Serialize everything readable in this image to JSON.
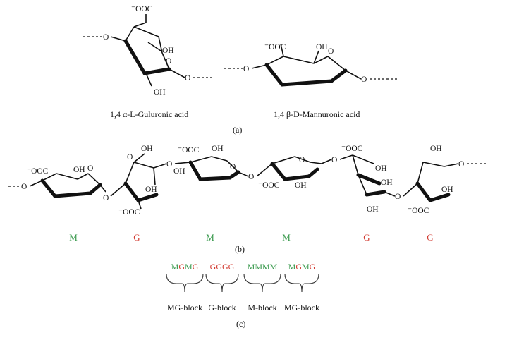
{
  "colors": {
    "M": "#3a9a4e",
    "G": "#d23a30",
    "ink": "#111111"
  },
  "panel_a": {
    "caption": "(a)",
    "guluronic_label": "1,4 α-L-Guluronic acid",
    "mannuronic_label": "1,4 β-D-Mannuronic acid"
  },
  "panel_b": {
    "caption": "(b)",
    "units": [
      "M",
      "G",
      "M",
      "M",
      "G",
      "G"
    ]
  },
  "panel_c": {
    "caption": "(c)",
    "blocks": [
      {
        "letters": [
          [
            "M",
            "M"
          ],
          [
            "G",
            "G"
          ],
          [
            "M",
            "M"
          ],
          [
            "G",
            "G"
          ]
        ],
        "label": "MG-block"
      },
      {
        "letters": [
          [
            "G",
            "G"
          ],
          [
            "G",
            "G"
          ],
          [
            "G",
            "G"
          ],
          [
            "G",
            "G"
          ]
        ],
        "label": "G-block"
      },
      {
        "letters": [
          [
            "M",
            "M"
          ],
          [
            "M",
            "M"
          ],
          [
            "M",
            "M"
          ],
          [
            "M",
            "M"
          ]
        ],
        "label": "M-block"
      },
      {
        "letters": [
          [
            "M",
            "M"
          ],
          [
            "G",
            "G"
          ],
          [
            "M",
            "M"
          ],
          [
            "G",
            "G"
          ]
        ],
        "label": "MG-block"
      }
    ]
  },
  "atoms": {
    "coo": "⁻OOC",
    "oh": "OH",
    "o": "O"
  }
}
